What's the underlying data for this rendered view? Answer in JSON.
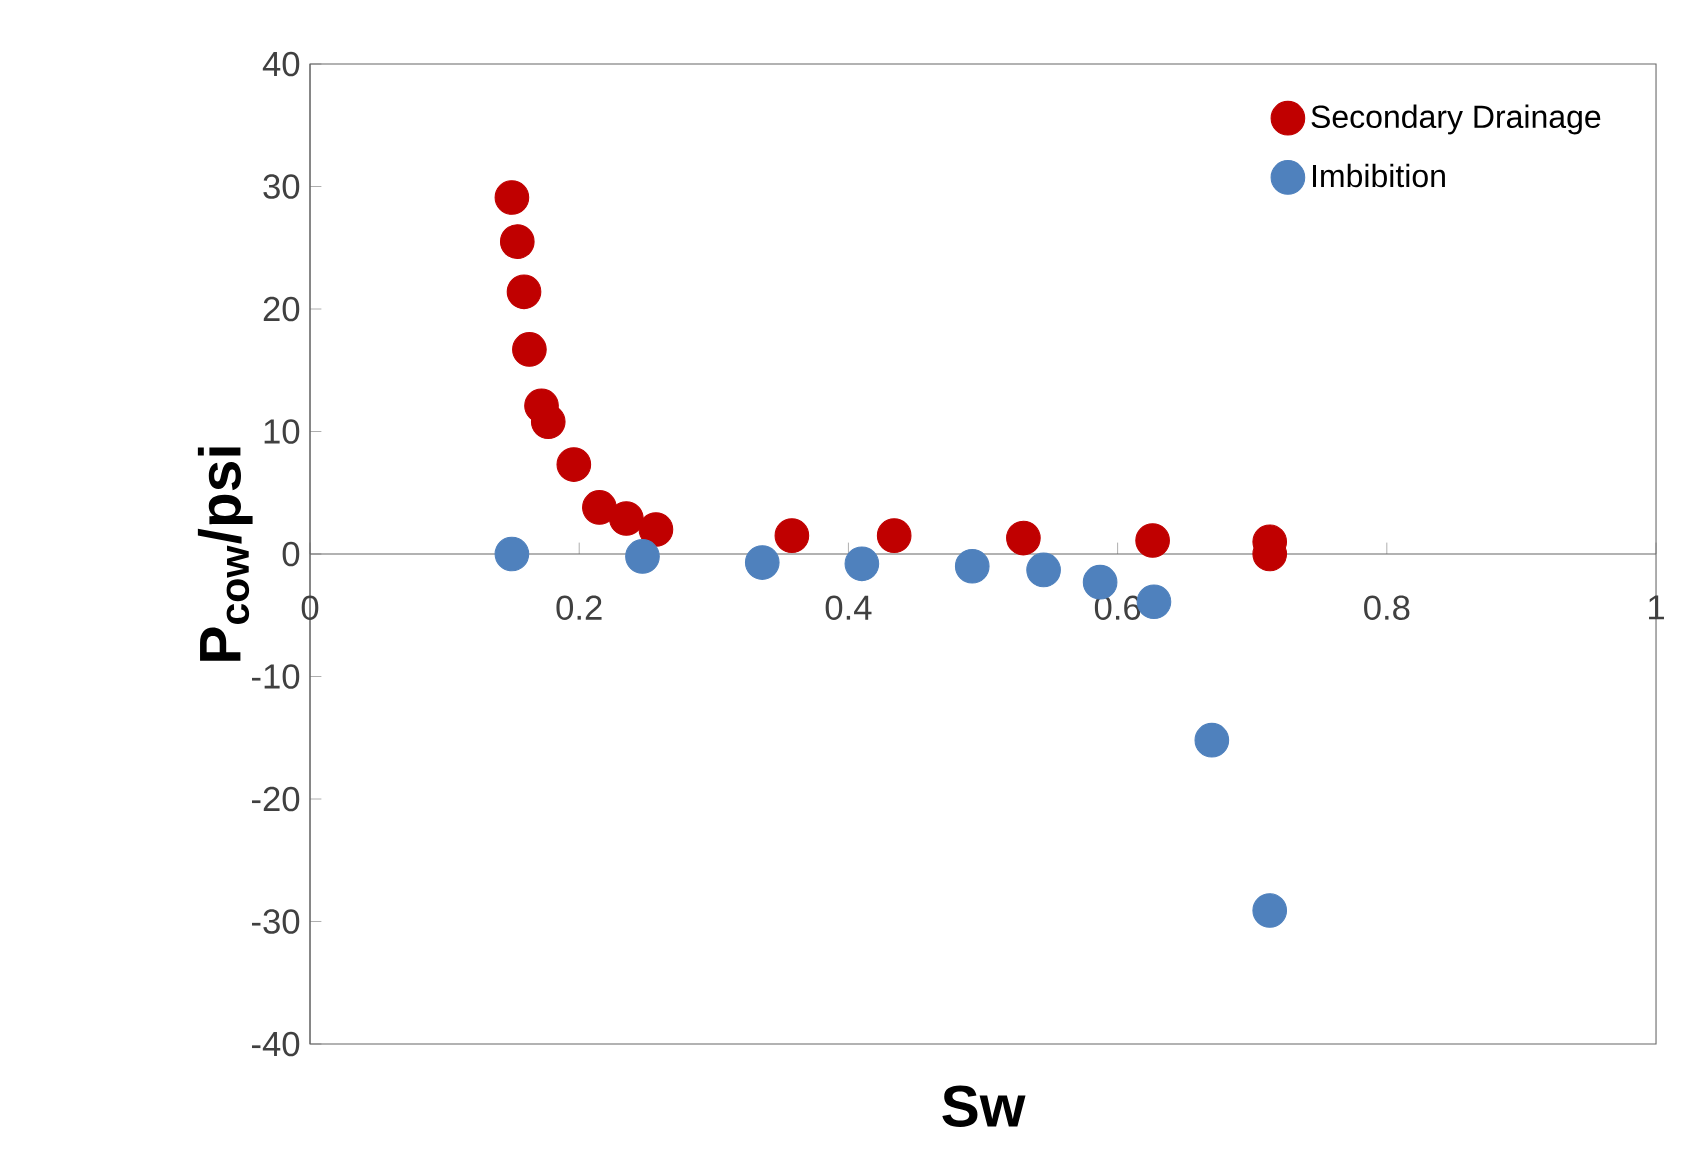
{
  "chart_data": {
    "type": "scatter",
    "xlabel": "Sw",
    "ylabel": "P$_{cow}$/psi",
    "xlim": [
      0,
      1
    ],
    "ylim": [
      -40,
      40
    ],
    "xticks": [
      0,
      0.2,
      0.4,
      0.6,
      0.8,
      1
    ],
    "yticks": [
      -40,
      -30,
      -20,
      -10,
      0,
      10,
      20,
      30,
      40
    ],
    "grid": false,
    "legend": "top right",
    "marker": "circle",
    "series": [
      {
        "name": "Secondary Drainage",
        "color": "#c00000",
        "x": [
          0.15,
          0.154,
          0.159,
          0.163,
          0.172,
          0.177,
          0.196,
          0.215,
          0.235,
          0.257,
          0.358,
          0.434,
          0.53,
          0.626,
          0.713,
          0.713
        ],
        "values": [
          29.1,
          25.5,
          21.4,
          16.7,
          12.1,
          10.8,
          7.3,
          3.8,
          2.9,
          2.0,
          1.5,
          1.5,
          1.3,
          1.1,
          1.0,
          0
        ]
      },
      {
        "name": "Imbibition",
        "color": "#4f81bd",
        "x": [
          0.15,
          0.247,
          0.336,
          0.41,
          0.492,
          0.545,
          0.587,
          0.627,
          0.67,
          0.713
        ],
        "values": [
          0,
          -0.2,
          -0.7,
          -0.8,
          -1.0,
          -1.3,
          -2.3,
          -3.9,
          -15.2,
          -29.1
        ]
      }
    ]
  }
}
